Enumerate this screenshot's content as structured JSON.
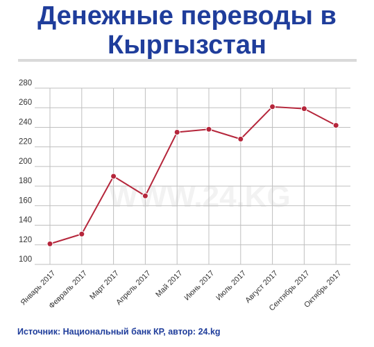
{
  "title": "Денежные переводы в Кыргызстан",
  "source": "Источник: Национальный банк КР, автор: 24.kg",
  "watermark": "WWW.24.KG",
  "colors": {
    "title": "#1f3d9b",
    "line": "#b5263b",
    "marker": "#b5263b",
    "grid": "#bfbfbf"
  },
  "chart_data": {
    "type": "line",
    "title": "Денежные переводы в Кыргызстан",
    "xlabel": "",
    "ylabel": "",
    "categories": [
      "Январь 2017",
      "Февраль 2017",
      "Март 2017",
      "Апрель 2017",
      "Май 2017",
      "Июнь 2017",
      "Июль 2017",
      "Август 2017",
      "Сентябрь 2017",
      "Октябрь 2017"
    ],
    "series": [
      {
        "values": [
          121,
          131,
          190,
          170,
          235,
          238,
          228,
          261,
          259,
          242
        ]
      }
    ],
    "ylim": [
      100,
      280
    ],
    "yticks": [
      100,
      120,
      140,
      160,
      180,
      200,
      220,
      240,
      260,
      280
    ],
    "grid": true
  }
}
